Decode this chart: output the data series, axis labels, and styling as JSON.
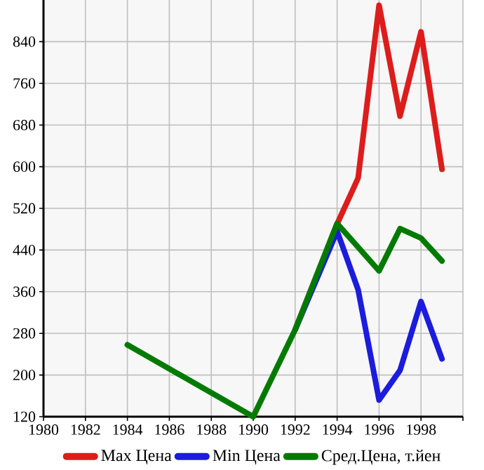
{
  "chart_data": {
    "type": "line",
    "xlim": [
      1980,
      2000
    ],
    "ylim": [
      120,
      920
    ],
    "xticks": [
      1980,
      1982,
      1984,
      1986,
      1988,
      1990,
      1992,
      1994,
      1996,
      1998,
      {
        "value": 2000,
        "label": null
      }
    ],
    "yticks": [
      120,
      200,
      280,
      360,
      440,
      520,
      600,
      680,
      760,
      840
    ],
    "grid": true,
    "legend": "bottom",
    "marker": "none",
    "line_style": "solid",
    "series": [
      {
        "name": "Max Цена",
        "color": "#dd1c1c",
        "x": [
          1992,
          1994,
          1995,
          1996,
          1997,
          1998,
          1999
        ],
        "values": [
          287,
          490,
          578,
          910,
          697,
          859,
          595
        ]
      },
      {
        "name": "Min Цена",
        "color": "#1c1cdd",
        "x": [
          1992,
          1994,
          1995,
          1996,
          1997,
          1998,
          1999
        ],
        "values": [
          287,
          476,
          364,
          152,
          209,
          341,
          231
        ]
      },
      {
        "name": "Сред.Цена, т.йен",
        "color": "#007a00",
        "x": [
          1984,
          1990,
          1992,
          1994,
          1996,
          1997,
          1998,
          1999
        ],
        "values": [
          258,
          120,
          287,
          491,
          400,
          481,
          463,
          419
        ]
      }
    ]
  }
}
